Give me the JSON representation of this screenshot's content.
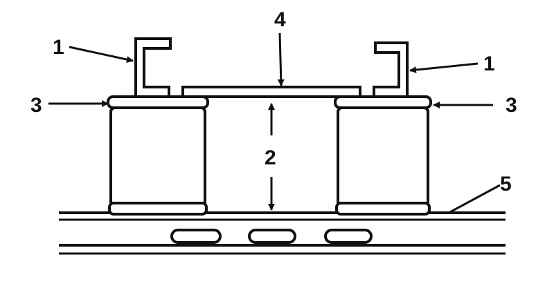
{
  "callouts": {
    "channel_left": "1",
    "channel_right": "1",
    "gap": "2",
    "pad_left": "3",
    "pad_right": "3",
    "plate": "4",
    "rail": "5"
  },
  "colors": {
    "ink": "#111111",
    "paper": "#ffffff"
  }
}
